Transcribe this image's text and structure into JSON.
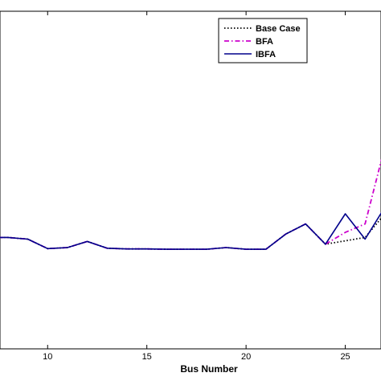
{
  "chart_data": {
    "type": "line",
    "xlabel": "Bus Number",
    "ylabel": "",
    "title": "",
    "xlim": [
      7.6,
      26.8
    ],
    "ylim": [
      0,
      1
    ],
    "x_ticks": [
      10,
      15,
      20,
      25
    ],
    "grid": false,
    "legend_position": "top-right",
    "series": [
      {
        "name": "Base Case",
        "color": "#000000",
        "style": "dotted",
        "x": [
          7,
          8,
          9,
          10,
          11,
          12,
          13,
          14,
          15,
          16,
          17,
          18,
          19,
          20,
          21,
          22,
          23,
          24,
          25,
          26,
          27
        ],
        "y": [
          0.33,
          0.33,
          0.325,
          0.297,
          0.3,
          0.318,
          0.298,
          0.296,
          0.296,
          0.295,
          0.295,
          0.295,
          0.3,
          0.295,
          0.295,
          0.34,
          0.37,
          0.31,
          0.32,
          0.33,
          0.4
        ]
      },
      {
        "name": "BFA",
        "color": "#cc00cc",
        "style": "dashdot",
        "x": [
          7,
          8,
          9,
          10,
          11,
          12,
          13,
          14,
          15,
          16,
          17,
          18,
          19,
          20,
          21,
          22,
          23,
          24,
          25,
          26,
          27
        ],
        "y": [
          0.33,
          0.33,
          0.325,
          0.297,
          0.3,
          0.318,
          0.298,
          0.296,
          0.296,
          0.295,
          0.295,
          0.295,
          0.3,
          0.295,
          0.295,
          0.34,
          0.37,
          0.31,
          0.345,
          0.37,
          0.6
        ]
      },
      {
        "name": "IBFA",
        "color": "#00008b",
        "style": "solid",
        "x": [
          7,
          8,
          9,
          10,
          11,
          12,
          13,
          14,
          15,
          16,
          17,
          18,
          19,
          20,
          21,
          22,
          23,
          24,
          25,
          26,
          27
        ],
        "y": [
          0.33,
          0.33,
          0.325,
          0.297,
          0.3,
          0.318,
          0.298,
          0.296,
          0.296,
          0.295,
          0.295,
          0.295,
          0.3,
          0.295,
          0.295,
          0.34,
          0.37,
          0.31,
          0.4,
          0.325,
          0.42
        ]
      }
    ]
  }
}
